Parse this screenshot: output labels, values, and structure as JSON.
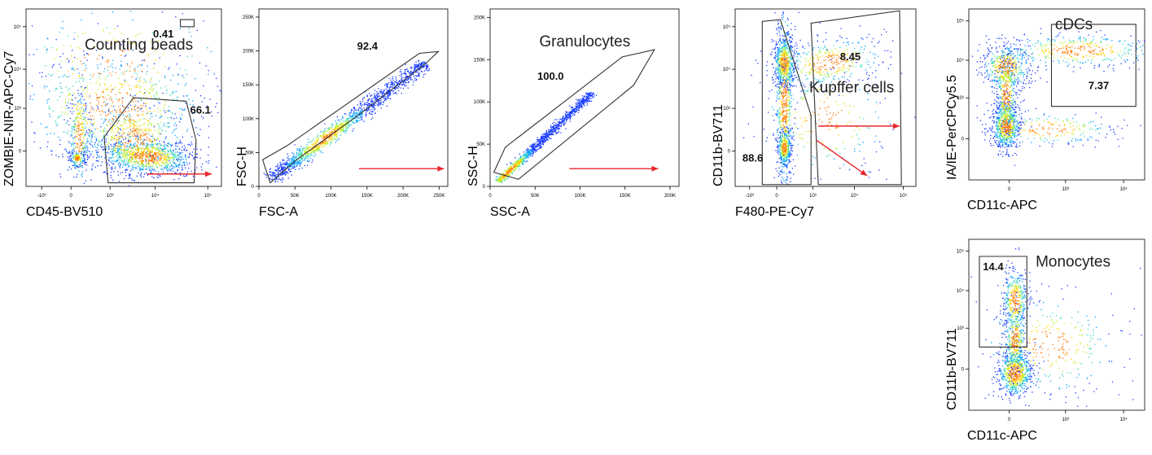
{
  "figure": {
    "colors": {
      "axis": "#000000",
      "gate": "#333333",
      "arrow": "#e8262a",
      "density": [
        "#1a3cff",
        "#0aa0ff",
        "#3fd9c0",
        "#b6ef2c",
        "#ffd400",
        "#ff7a00",
        "#e8101a"
      ]
    }
  },
  "chart_data": [
    {
      "type": "scatter",
      "panel": "cd45-zombie",
      "xlabel": "CD45-BV510",
      "ylabel": "ZOMBIE-NIR-APC-Cy7",
      "x_scale": "biexponential",
      "y_scale": "biexponential",
      "x_ticks": [
        "-10³",
        "0",
        "10³",
        "10⁴",
        "10⁵"
      ],
      "y_ticks": [
        "0",
        "10³",
        "10⁴",
        "10⁵"
      ],
      "gates": [
        {
          "name": "Counting beads",
          "percent": "0.41"
        },
        {
          "name": "",
          "percent": "66.1"
        }
      ],
      "arrow": true
    },
    {
      "type": "scatter",
      "panel": "fsc",
      "xlabel": "FSC-A",
      "ylabel": "FSC-H",
      "x_scale": "linear",
      "y_scale": "linear",
      "xlim": [
        0,
        262144
      ],
      "ylim": [
        0,
        262144
      ],
      "x_ticks": [
        "0",
        "50K",
        "100K",
        "150K",
        "200K",
        "250K"
      ],
      "y_ticks": [
        "0",
        "50K",
        "100K",
        "150K",
        "200K",
        "250K"
      ],
      "gates": [
        {
          "name": "",
          "percent": "92.4"
        }
      ],
      "arrow": true
    },
    {
      "type": "scatter",
      "panel": "ssc",
      "xlabel": "SSC-A",
      "ylabel": "SSC-H",
      "x_scale": "linear",
      "y_scale": "linear",
      "xlim": [
        0,
        210000
      ],
      "ylim": [
        0,
        210000
      ],
      "x_ticks": [
        "0",
        "50K",
        "100K",
        "150K",
        "200K"
      ],
      "y_ticks": [
        "0",
        "50K",
        "100K",
        "150K",
        "200K"
      ],
      "gates": [
        {
          "name": "Granulocytes",
          "percent": "100.0"
        }
      ],
      "arrow": true
    },
    {
      "type": "scatter",
      "panel": "f480-cd11b",
      "xlabel": "F480-PE-Cy7",
      "ylabel": "CD11b-BV711",
      "x_scale": "biexponential",
      "y_scale": "biexponential",
      "x_ticks": [
        "-10³",
        "0",
        "10³",
        "10⁴",
        "10⁵"
      ],
      "y_ticks": [
        "0",
        "10³",
        "10⁴",
        "10⁵"
      ],
      "gates": [
        {
          "name": "Kupffer cells",
          "percent": "8.45"
        },
        {
          "name": "",
          "percent": "88.6"
        }
      ],
      "arrow": true
    },
    {
      "type": "scatter",
      "panel": "cd11c-ia",
      "xlabel": "CD11c-APC",
      "ylabel": "IA/IE-PerCPCy5.5",
      "x_scale": "biexponential",
      "y_scale": "biexponential",
      "x_ticks": [
        "0",
        "10³",
        "10⁴"
      ],
      "y_ticks": [
        "0",
        "10³",
        "10⁴",
        "10⁵"
      ],
      "gates": [
        {
          "name": "cDCs",
          "percent": "7.37"
        }
      ],
      "arrow": false
    },
    {
      "type": "scatter",
      "panel": "cd11c-cd11b",
      "xlabel": "CD11c-APC",
      "ylabel": "CD11b-BV711",
      "x_scale": "biexponential",
      "y_scale": "biexponential",
      "x_ticks": [
        "0",
        "10³",
        "10⁴"
      ],
      "y_ticks": [
        "0",
        "10³",
        "10⁴",
        "10⁵"
      ],
      "gates": [
        {
          "name": "Monocytes",
          "percent": "14.4"
        }
      ],
      "arrow": false
    }
  ]
}
